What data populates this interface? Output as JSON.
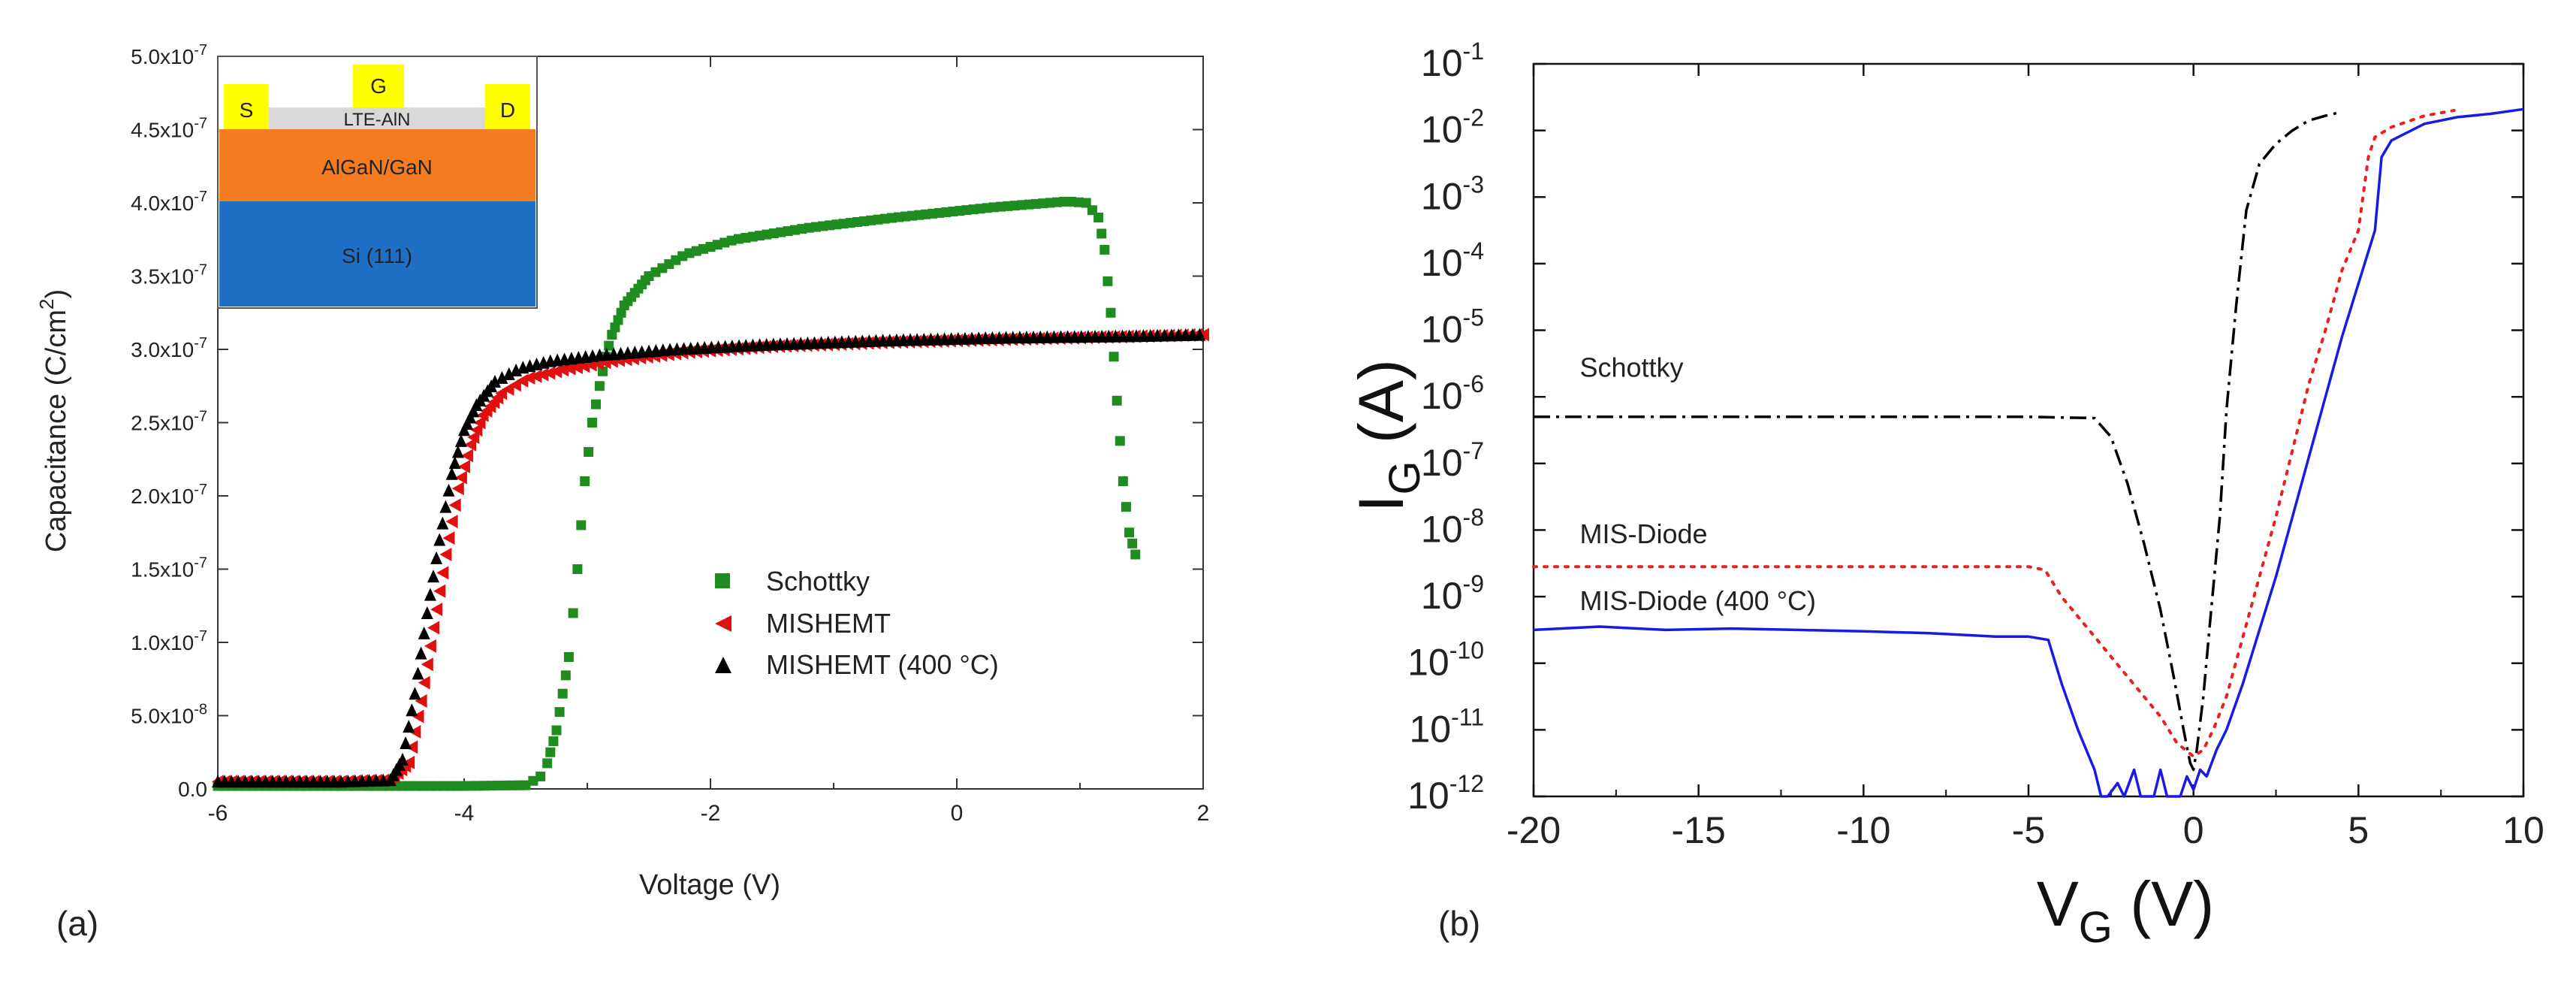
{
  "panels": [
    {
      "id": "a",
      "panel_label": "(a)",
      "chart_data": {
        "type": "scatter",
        "title": "",
        "xlabel": "Voltage (V)",
        "ylabel_main": "Capacitance (C/cm",
        "ylabel_sup": "2",
        "ylabel_end": ")",
        "xlim": [
          -6,
          2
        ],
        "ylim": [
          0,
          5e-07
        ],
        "x_ticks": [
          {
            "value": -6,
            "label": "-6"
          },
          {
            "value": -4,
            "label": "-4"
          },
          {
            "value": -2,
            "label": "-2"
          },
          {
            "value": 0,
            "label": "0"
          },
          {
            "value": 2,
            "label": "2"
          }
        ],
        "y_ticks": [
          {
            "value": 0,
            "mant": "0.0",
            "exp": ""
          },
          {
            "value": 5e-08,
            "mant": "5.0x10",
            "exp": "-8"
          },
          {
            "value": 1e-07,
            "mant": "1.0x10",
            "exp": "-7"
          },
          {
            "value": 1.5e-07,
            "mant": "1.5x10",
            "exp": "-7"
          },
          {
            "value": 2e-07,
            "mant": "2.0x10",
            "exp": "-7"
          },
          {
            "value": 2.5e-07,
            "mant": "2.5x10",
            "exp": "-7"
          },
          {
            "value": 3e-07,
            "mant": "3.0x10",
            "exp": "-7"
          },
          {
            "value": 3.5e-07,
            "mant": "3.5x10",
            "exp": "-7"
          },
          {
            "value": 4e-07,
            "mant": "4.0x10",
            "exp": "-7"
          },
          {
            "value": 4.5e-07,
            "mant": "4.5x10",
            "exp": "-7"
          },
          {
            "value": 5e-07,
            "mant": "5.0x10",
            "exp": "-7"
          }
        ],
        "legend_position": "center-right",
        "series": [
          {
            "name": "Schottky",
            "marker": "square",
            "color": "#1e8c1e",
            "x": [
              -6.0,
              -5.0,
              -4.0,
              -3.5,
              -3.35,
              -3.25,
              -3.15,
              -3.08,
              -3.02,
              -2.96,
              -2.9,
              -2.85,
              -2.8,
              -2.7,
              -2.5,
              -2.2,
              -1.8,
              -1.2,
              -0.5,
              0.3,
              0.9,
              1.05,
              1.15,
              1.2,
              1.25,
              1.3,
              1.35,
              1.4,
              1.45
            ],
            "y": [
              2e-09,
              2e-09,
              2e-09,
              2.5e-09,
              1e-08,
              4e-08,
              9e-08,
              1.5e-07,
              2.1e-07,
              2.5e-07,
              2.75e-07,
              2.95e-07,
              3.1e-07,
              3.3e-07,
              3.5e-07,
              3.65e-07,
              3.75e-07,
              3.83e-07,
              3.9e-07,
              3.97e-07,
              4.01e-07,
              4e-07,
              3.9e-07,
              3.68e-07,
              3.25e-07,
              2.65e-07,
              2.1e-07,
              1.75e-07,
              1.6e-07
            ]
          },
          {
            "name": "MISHEMT",
            "marker": "triangle-left",
            "color": "#e01010",
            "x": [
              -6.0,
              -5.0,
              -4.6,
              -4.45,
              -4.35,
              -4.25,
              -4.15,
              -4.05,
              -3.95,
              -3.85,
              -3.7,
              -3.5,
              -3.2,
              -2.8,
              -2.2,
              -1.5,
              -0.5,
              0.5,
              1.5,
              2.0
            ],
            "y": [
              5e-09,
              5e-09,
              6e-09,
              1.8e-08,
              6e-08,
              1.1e-07,
              1.6e-07,
              2.05e-07,
              2.35e-07,
              2.55e-07,
              2.7e-07,
              2.8e-07,
              2.86e-07,
              2.92e-07,
              2.98e-07,
              3.02e-07,
              3.05e-07,
              3.07e-07,
              3.09e-07,
              3.1e-07
            ]
          },
          {
            "name": "MISHEMT (400 °C)",
            "marker": "triangle-up",
            "color": "#000000",
            "x": [
              -6.0,
              -5.0,
              -4.6,
              -4.5,
              -4.4,
              -4.3,
              -4.2,
              -4.1,
              -4.0,
              -3.9,
              -3.75,
              -3.55,
              -3.3,
              -2.9,
              -2.3,
              -1.6,
              -0.6,
              0.4,
              1.4,
              2.0
            ],
            "y": [
              5e-09,
              5e-09,
              6e-09,
              2e-08,
              6.5e-08,
              1.2e-07,
              1.7e-07,
              2.15e-07,
              2.45e-07,
              2.62e-07,
              2.78e-07,
              2.87e-07,
              2.92e-07,
              2.96e-07,
              3e-07,
              3.03e-07,
              3.06e-07,
              3.08e-07,
              3.09e-07,
              3.1e-07
            ]
          }
        ],
        "inset": {
          "source_label": "S",
          "gate_label": "G",
          "drain_label": "D",
          "dielectric_label": "LTE-AlN",
          "barrier_label": "AlGaN/GaN",
          "substrate_label": "Si (111)",
          "contact_color": "#ffff00",
          "dielectric_color": "#d9d9d9",
          "barrier_color": "#f47b20",
          "substrate_color": "#1f6fc5"
        }
      }
    },
    {
      "id": "b",
      "panel_label": "(b)",
      "chart_data": {
        "type": "line",
        "title": "",
        "xlabel_main": "V",
        "xlabel_sub": "G",
        "xlabel_unit": " (V)",
        "ylabel_main": "I",
        "ylabel_sub": "G",
        "ylabel_unit": " (A)",
        "xlim": [
          -20,
          10
        ],
        "ylim_log10": [
          -12,
          -1
        ],
        "y_scale": "log",
        "x_ticks": [
          {
            "value": -20,
            "label": "-20"
          },
          {
            "value": -15,
            "label": "-15"
          },
          {
            "value": -10,
            "label": "-10"
          },
          {
            "value": -5,
            "label": "-5"
          },
          {
            "value": 0,
            "label": "0"
          },
          {
            "value": 5,
            "label": "5"
          },
          {
            "value": 10,
            "label": "10"
          }
        ],
        "y_ticks": [
          {
            "value": -1,
            "base": "10",
            "exp": "-1"
          },
          {
            "value": -2,
            "base": "10",
            "exp": "-2"
          },
          {
            "value": -3,
            "base": "10",
            "exp": "-3"
          },
          {
            "value": -4,
            "base": "10",
            "exp": "-4"
          },
          {
            "value": -5,
            "base": "10",
            "exp": "-5"
          },
          {
            "value": -6,
            "base": "10",
            "exp": "-6"
          },
          {
            "value": -7,
            "base": "10",
            "exp": "-7"
          },
          {
            "value": -8,
            "base": "10",
            "exp": "-8"
          },
          {
            "value": -9,
            "base": "10",
            "exp": "-9"
          },
          {
            "value": -10,
            "base": "10",
            "exp": "-10"
          },
          {
            "value": -11,
            "base": "10",
            "exp": "-11"
          },
          {
            "value": -12,
            "base": "10",
            "exp": "-12"
          }
        ],
        "series": [
          {
            "name": "Schottky",
            "style": "dashdot",
            "color": "#000000",
            "label_at": {
              "x": -18.6,
              "log10y": -5.7
            },
            "x": [
              -20,
              -15,
              -10,
              -5,
              -3,
              -2.5,
              -2,
              -1.5,
              -1,
              -0.6,
              -0.3,
              -0.1,
              0,
              0.1,
              0.3,
              0.5,
              0.8,
              1.0,
              1.3,
              1.6,
              2.0,
              2.5,
              3.0,
              3.5,
              4.0,
              4.5
            ],
            "log10y": [
              -6.3,
              -6.3,
              -6.3,
              -6.3,
              -6.32,
              -6.6,
              -7.3,
              -8.2,
              -9.2,
              -10.2,
              -11.0,
              -11.5,
              -11.6,
              -11.3,
              -10.5,
              -9.4,
              -7.8,
              -6.2,
              -4.6,
              -3.2,
              -2.5,
              -2.2,
              -2.0,
              -1.85,
              -1.78,
              -1.72
            ]
          },
          {
            "name": "MIS-Diode",
            "style": "dotted",
            "color": "#e82020",
            "label_at": {
              "x": -18.6,
              "log10y": -8.2
            },
            "x": [
              -20,
              -15,
              -10,
              -5,
              -4.5,
              -4,
              -3,
              -2,
              -1,
              -0.5,
              0,
              0.3,
              0.6,
              1.0,
              1.5,
              2.0,
              2.5,
              3.0,
              3.5,
              4.0,
              4.5,
              5.0,
              5.3,
              5.5,
              6.0,
              7.0,
              7.9
            ],
            "log10y": [
              -8.55,
              -8.55,
              -8.55,
              -8.55,
              -8.6,
              -9.0,
              -9.6,
              -10.2,
              -10.8,
              -11.2,
              -11.4,
              -11.3,
              -11.0,
              -10.5,
              -9.6,
              -8.7,
              -7.8,
              -6.8,
              -5.8,
              -5.0,
              -4.1,
              -3.5,
              -2.4,
              -2.1,
              -1.95,
              -1.78,
              -1.7
            ]
          },
          {
            "name": "MIS-Diode (400 °C)",
            "style": "solid",
            "color": "#1a1ae6",
            "label_at": {
              "x": -18.6,
              "log10y": -9.2
            },
            "x": [
              -20,
              -18,
              -16,
              -14,
              -12,
              -10,
              -8,
              -6,
              -5,
              -4.4,
              -4,
              -3.5,
              -3.0,
              -2.8,
              -2.6,
              -2.3,
              -2.1,
              -1.8,
              -1.6,
              -1.2,
              -1.0,
              -0.8,
              -0.4,
              -0.2,
              0,
              0.2,
              0.4,
              0.7,
              1.0,
              1.5,
              2.0,
              2.5,
              3.0,
              3.5,
              4.0,
              4.5,
              5.0,
              5.5,
              5.7,
              6.0,
              7.0,
              8.0,
              9.0,
              10.0
            ],
            "log10y": [
              -9.5,
              -9.45,
              -9.5,
              -9.48,
              -9.5,
              -9.52,
              -9.55,
              -9.6,
              -9.6,
              -9.65,
              -10.3,
              -11.0,
              -11.6,
              -12.0,
              -12.0,
              -11.8,
              -12.0,
              -11.6,
              -12.0,
              -12.0,
              -11.6,
              -12.0,
              -12.0,
              -11.7,
              -11.9,
              -11.6,
              -11.7,
              -11.3,
              -11.0,
              -10.3,
              -9.5,
              -8.7,
              -7.8,
              -6.9,
              -6.0,
              -5.1,
              -4.3,
              -3.5,
              -2.4,
              -2.15,
              -1.9,
              -1.8,
              -1.75,
              -1.68
            ]
          }
        ]
      }
    }
  ]
}
